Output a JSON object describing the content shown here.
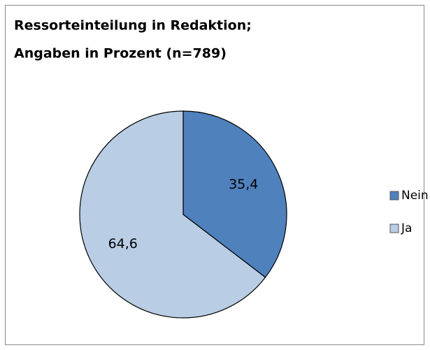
{
  "chart_data": {
    "type": "pie",
    "title": [
      "Ressorteinteilung in Redaktion;",
      "Angaben in Prozent (n=789)"
    ],
    "categories": [
      "Nein",
      "Ja"
    ],
    "values": [
      35.4,
      64.6
    ],
    "value_labels": [
      "35,4",
      "64,6"
    ],
    "colors": [
      "#4f81bd",
      "#b9cde5"
    ],
    "legend": "right"
  }
}
